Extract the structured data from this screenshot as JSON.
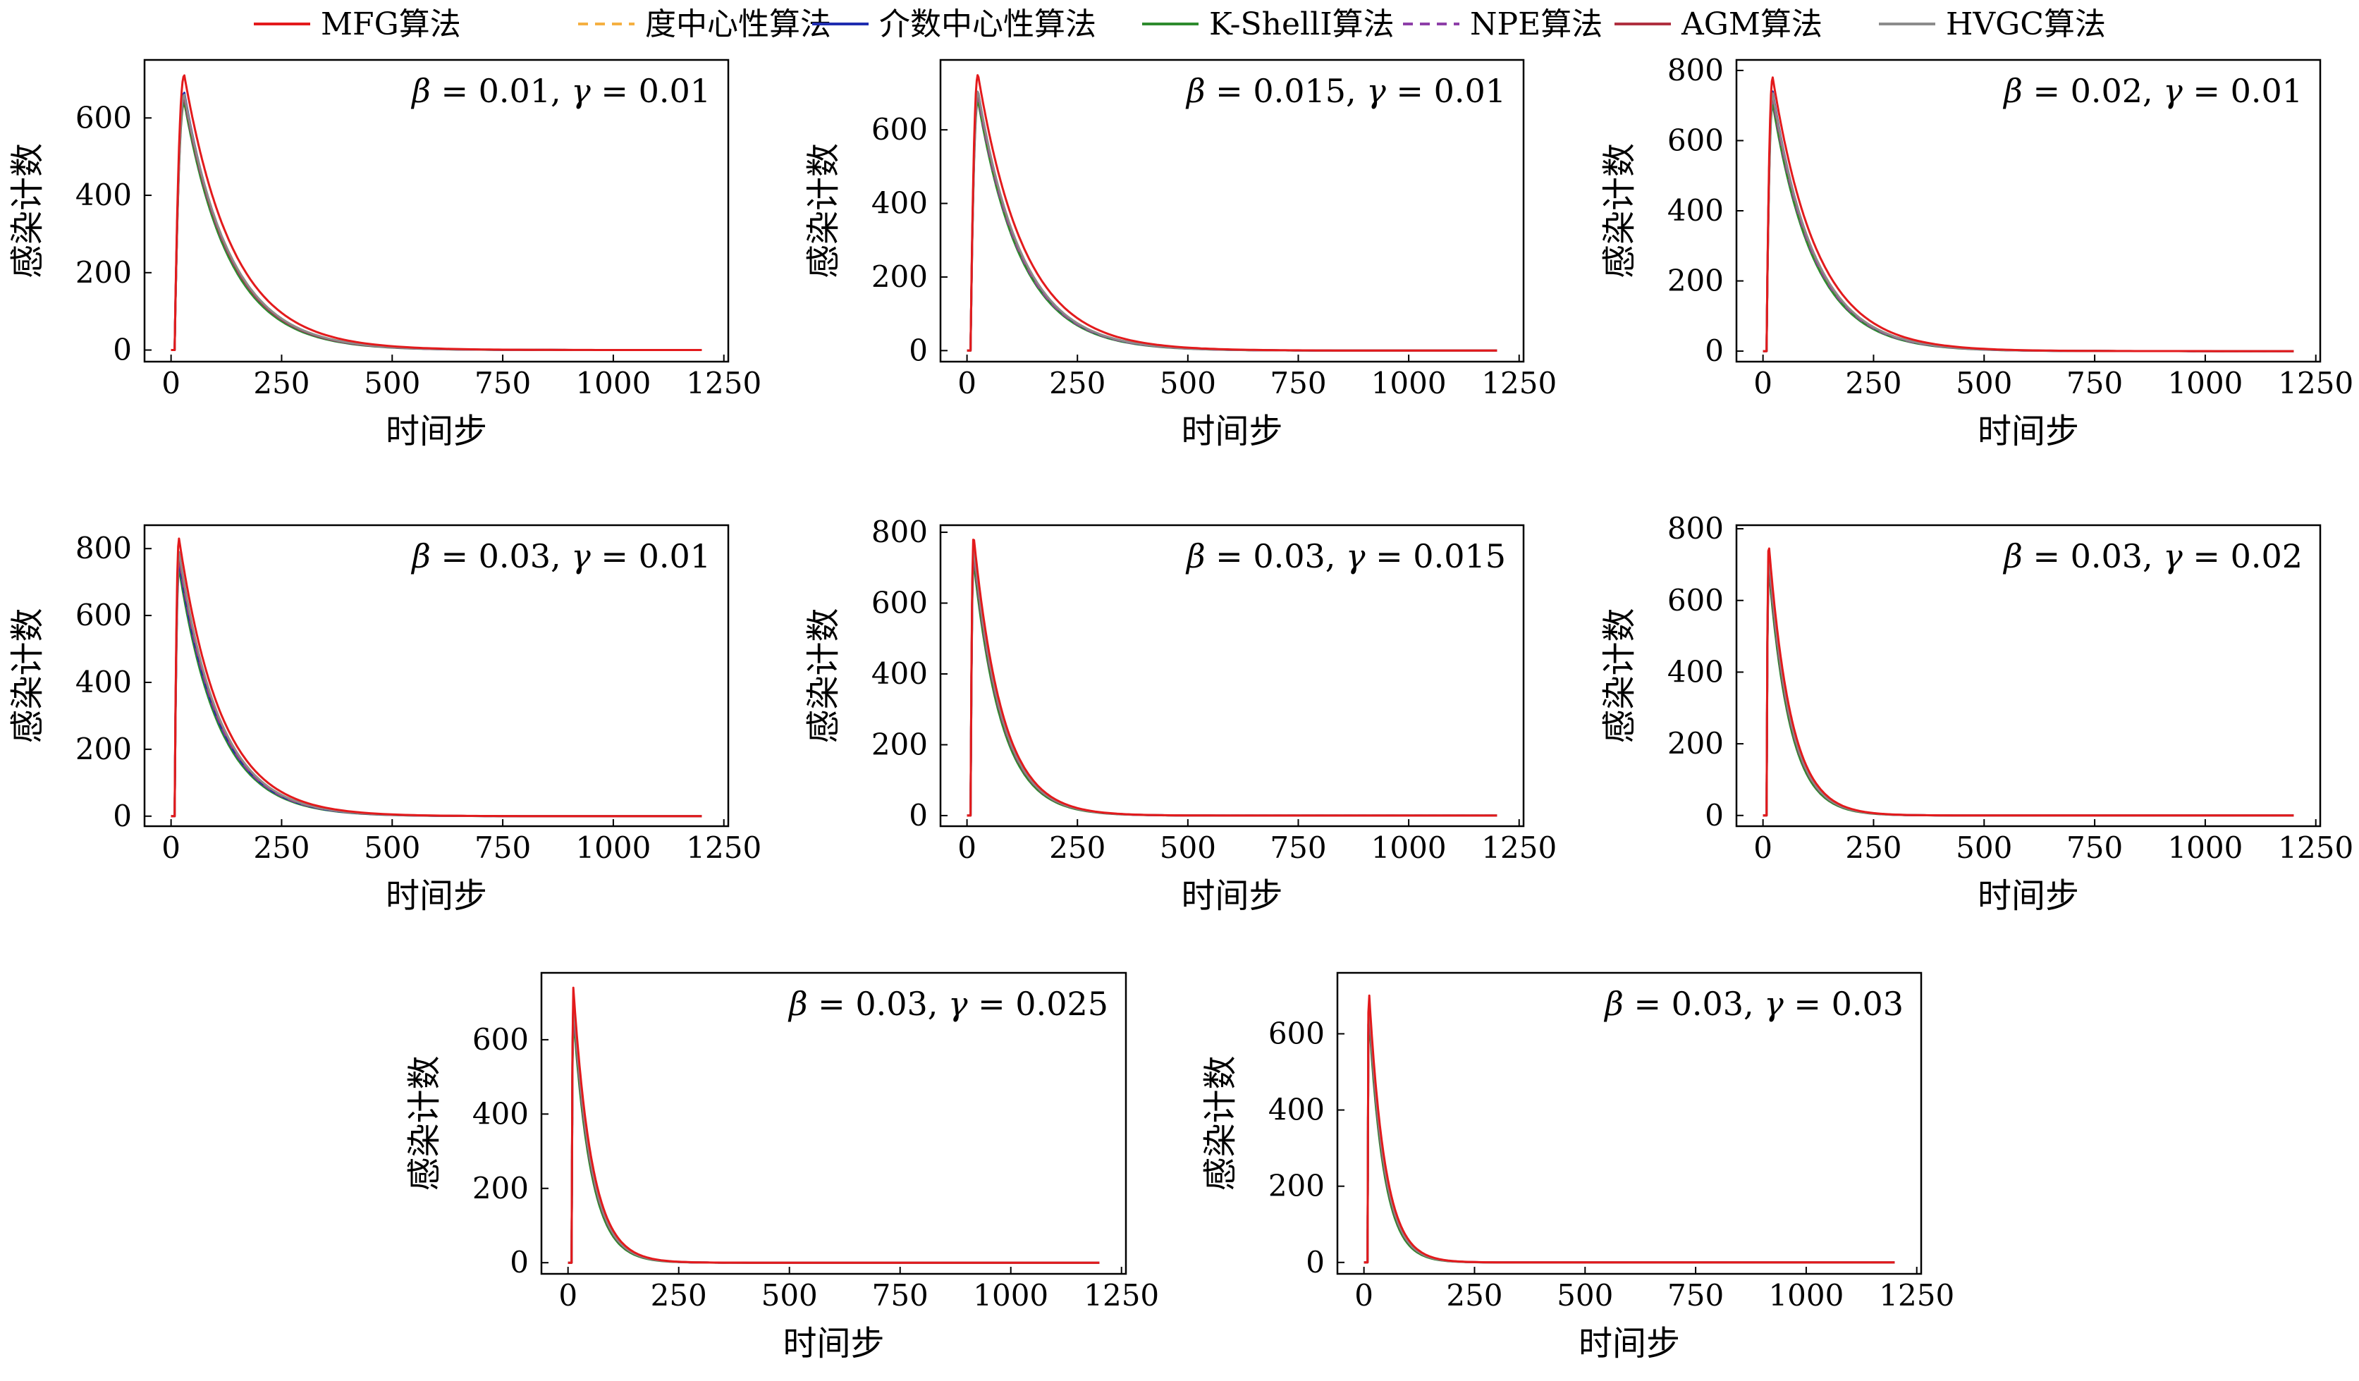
{
  "legend": [
    {
      "label": "MFG算法",
      "color": "#e31a1c",
      "dash": "solid"
    },
    {
      "label": "度中心性算法",
      "color": "#f5b041",
      "dash": "dashed"
    },
    {
      "label": "介数中心性算法",
      "color": "#1f2db0",
      "dash": "solid"
    },
    {
      "label": "K-ShellI算法",
      "color": "#2e8b2e",
      "dash": "solid"
    },
    {
      "label": "NPE算法",
      "color": "#8e3fa8",
      "dash": "dashed"
    },
    {
      "label": "AGM算法",
      "color": "#b03040",
      "dash": "solid"
    },
    {
      "label": "HVGC算法",
      "color": "#8c8c8c",
      "dash": "solid"
    }
  ],
  "chart_data": [
    {
      "type": "line",
      "annotation": {
        "beta": "0.01",
        "gamma": "0.01"
      },
      "xlabel": "时间步",
      "ylabel": "感染计数",
      "xlim": [
        -60,
        1260
      ],
      "ylim": [
        -30,
        750
      ],
      "xticks": [
        "0",
        "250",
        "500",
        "750",
        "1000",
        "1250"
      ],
      "yticks": [
        "0",
        "200",
        "400",
        "600"
      ],
      "ytick_values": [
        0,
        200,
        400,
        600
      ],
      "peak_x": 30,
      "series": [
        {
          "name": "MFG算法",
          "peak": 710,
          "decay": 110
        },
        {
          "name": "度中心性算法",
          "peak": 660,
          "decay": 105
        },
        {
          "name": "介数中心性算法",
          "peak": 665,
          "decay": 103
        },
        {
          "name": "K-ShellI算法",
          "peak": 640,
          "decay": 102
        },
        {
          "name": "NPE算法",
          "peak": 650,
          "decay": 104
        },
        {
          "name": "AGM算法",
          "peak": 655,
          "decay": 104
        },
        {
          "name": "HVGC算法",
          "peak": 660,
          "decay": 105
        }
      ]
    },
    {
      "type": "line",
      "annotation": {
        "beta": "0.015",
        "gamma": "0.01"
      },
      "xlabel": "时间步",
      "ylabel": "感染计数",
      "xlim": [
        -60,
        1260
      ],
      "ylim": [
        -30,
        790
      ],
      "xticks": [
        "0",
        "250",
        "500",
        "750",
        "1000",
        "1250"
      ],
      "yticks": [
        "0",
        "200",
        "400",
        "600"
      ],
      "ytick_values": [
        0,
        200,
        400,
        600
      ],
      "peak_x": 25,
      "series": [
        {
          "name": "MFG算法",
          "peak": 750,
          "decay": 105
        },
        {
          "name": "度中心性算法",
          "peak": 700,
          "decay": 100
        },
        {
          "name": "介数中心性算法",
          "peak": 705,
          "decay": 99
        },
        {
          "name": "K-ShellI算法",
          "peak": 680,
          "decay": 98
        },
        {
          "name": "NPE算法",
          "peak": 690,
          "decay": 99
        },
        {
          "name": "AGM算法",
          "peak": 700,
          "decay": 100
        },
        {
          "name": "HVGC算法",
          "peak": 705,
          "decay": 100
        }
      ]
    },
    {
      "type": "line",
      "annotation": {
        "beta": "0.02",
        "gamma": "0.01"
      },
      "xlabel": "时间步",
      "ylabel": "感染计数",
      "xlim": [
        -60,
        1260
      ],
      "ylim": [
        -30,
        830
      ],
      "xticks": [
        "0",
        "250",
        "500",
        "750",
        "1000",
        "1250"
      ],
      "yticks": [
        "0",
        "200",
        "400",
        "600",
        "800"
      ],
      "ytick_values": [
        0,
        200,
        400,
        600,
        800
      ],
      "peak_x": 22,
      "series": [
        {
          "name": "MFG算法",
          "peak": 780,
          "decay": 100
        },
        {
          "name": "度中心性算法",
          "peak": 735,
          "decay": 96
        },
        {
          "name": "介数中心性算法",
          "peak": 740,
          "decay": 95
        },
        {
          "name": "K-ShellI算法",
          "peak": 705,
          "decay": 94
        },
        {
          "name": "NPE算法",
          "peak": 720,
          "decay": 95
        },
        {
          "name": "AGM算法",
          "peak": 730,
          "decay": 96
        },
        {
          "name": "HVGC算法",
          "peak": 735,
          "decay": 96
        }
      ]
    },
    {
      "type": "line",
      "annotation": {
        "beta": "0.03",
        "gamma": "0.01"
      },
      "xlabel": "时间步",
      "ylabel": "感染计数",
      "xlim": [
        -60,
        1260
      ],
      "ylim": [
        -30,
        870
      ],
      "xticks": [
        "0",
        "250",
        "500",
        "750",
        "1000",
        "1250"
      ],
      "yticks": [
        "0",
        "200",
        "400",
        "600",
        "800"
      ],
      "ytick_values": [
        0,
        200,
        400,
        600,
        800
      ],
      "peak_x": 18,
      "series": [
        {
          "name": "MFG算法",
          "peak": 830,
          "decay": 95
        },
        {
          "name": "度中心性算法",
          "peak": 775,
          "decay": 92
        },
        {
          "name": "介数中心性算法",
          "peak": 760,
          "decay": 91
        },
        {
          "name": "K-ShellI算法",
          "peak": 740,
          "decay": 90
        },
        {
          "name": "NPE算法",
          "peak": 770,
          "decay": 91
        },
        {
          "name": "AGM算法",
          "peak": 780,
          "decay": 92
        },
        {
          "name": "HVGC算法",
          "peak": 790,
          "decay": 92
        }
      ]
    },
    {
      "type": "line",
      "annotation": {
        "beta": "0.03",
        "gamma": "0.015"
      },
      "xlabel": "时间步",
      "ylabel": "感染计数",
      "xlim": [
        -60,
        1260
      ],
      "ylim": [
        -30,
        820
      ],
      "xticks": [
        "0",
        "250",
        "500",
        "750",
        "1000",
        "1250"
      ],
      "yticks": [
        "0",
        "200",
        "400",
        "600",
        "800"
      ],
      "ytick_values": [
        0,
        200,
        400,
        600,
        800
      ],
      "peak_x": 15,
      "series": [
        {
          "name": "MFG算法",
          "peak": 790,
          "decay": 65
        },
        {
          "name": "度中心性算法",
          "peak": 755,
          "decay": 64
        },
        {
          "name": "介数中心性算法",
          "peak": 750,
          "decay": 64
        },
        {
          "name": "K-ShellI算法",
          "peak": 720,
          "decay": 63
        },
        {
          "name": "NPE算法",
          "peak": 740,
          "decay": 64
        },
        {
          "name": "AGM算法",
          "peak": 750,
          "decay": 64
        },
        {
          "name": "HVGC算法",
          "peak": 760,
          "decay": 64
        }
      ]
    },
    {
      "type": "line",
      "annotation": {
        "beta": "0.03",
        "gamma": "0.02"
      },
      "xlabel": "时间步",
      "ylabel": "感染计数",
      "xlim": [
        -60,
        1260
      ],
      "ylim": [
        -30,
        810
      ],
      "xticks": [
        "0",
        "250",
        "500",
        "750",
        "1000",
        "1250"
      ],
      "yticks": [
        "0",
        "200",
        "400",
        "600",
        "800"
      ],
      "ytick_values": [
        0,
        200,
        400,
        600,
        800
      ],
      "peak_x": 13,
      "series": [
        {
          "name": "MFG算法",
          "peak": 760,
          "decay": 50
        },
        {
          "name": "度中心性算法",
          "peak": 725,
          "decay": 49
        },
        {
          "name": "介数中心性算法",
          "peak": 720,
          "decay": 49
        },
        {
          "name": "K-ShellI算法",
          "peak": 690,
          "decay": 48
        },
        {
          "name": "NPE算法",
          "peak": 710,
          "decay": 49
        },
        {
          "name": "AGM算法",
          "peak": 720,
          "decay": 49
        },
        {
          "name": "HVGC算法",
          "peak": 730,
          "decay": 49
        }
      ]
    },
    {
      "type": "line",
      "annotation": {
        "beta": "0.03",
        "gamma": "0.025"
      },
      "xlabel": "时间步",
      "ylabel": "感染计数",
      "xlim": [
        -60,
        1260
      ],
      "ylim": [
        -30,
        780
      ],
      "xticks": [
        "0",
        "250",
        "500",
        "750",
        "1000",
        "1250"
      ],
      "yticks": [
        "0",
        "200",
        "400",
        "600"
      ],
      "ytick_values": [
        0,
        200,
        400,
        600
      ],
      "peak_x": 12,
      "series": [
        {
          "name": "MFG算法",
          "peak": 740,
          "decay": 42
        },
        {
          "name": "度中心性算法",
          "peak": 705,
          "decay": 41
        },
        {
          "name": "介数中心性算法",
          "peak": 700,
          "decay": 41
        },
        {
          "name": "K-ShellI算法",
          "peak": 670,
          "decay": 40
        },
        {
          "name": "NPE算法",
          "peak": 690,
          "decay": 41
        },
        {
          "name": "AGM算法",
          "peak": 700,
          "decay": 41
        },
        {
          "name": "HVGC算法",
          "peak": 710,
          "decay": 41
        }
      ]
    },
    {
      "type": "line",
      "annotation": {
        "beta": "0.03",
        "gamma": "0.03"
      },
      "xlabel": "时间步",
      "ylabel": "感染计数",
      "xlim": [
        -60,
        1260
      ],
      "ylim": [
        -30,
        760
      ],
      "xticks": [
        "0",
        "250",
        "500",
        "750",
        "1000",
        "1250"
      ],
      "yticks": [
        "0",
        "200",
        "400",
        "600"
      ],
      "ytick_values": [
        0,
        200,
        400,
        600
      ],
      "peak_x": 11,
      "series": [
        {
          "name": "MFG算法",
          "peak": 720,
          "decay": 36
        },
        {
          "name": "度中心性算法",
          "peak": 690,
          "decay": 35
        },
        {
          "name": "介数中心性算法",
          "peak": 685,
          "decay": 35
        },
        {
          "name": "K-ShellI算法",
          "peak": 655,
          "decay": 34
        },
        {
          "name": "NPE算法",
          "peak": 675,
          "decay": 35
        },
        {
          "name": "AGM算法",
          "peak": 685,
          "decay": 35
        },
        {
          "name": "HVGC算法",
          "peak": 695,
          "decay": 35
        }
      ]
    }
  ]
}
